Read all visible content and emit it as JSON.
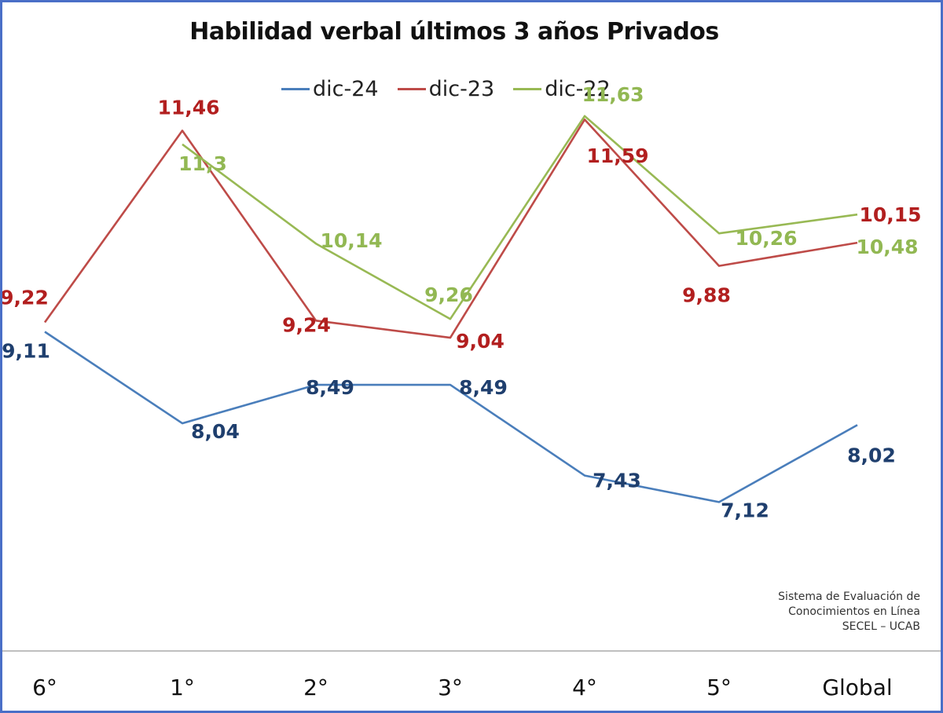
{
  "chart_data": {
    "type": "line",
    "title": "Habilidad verbal últimos 3 años Privados",
    "xlabel": "",
    "ylabel": "",
    "categories": [
      "6°",
      "1°",
      "2°",
      "3°",
      "4°",
      "5°",
      "Global"
    ],
    "ylim": [
      6.5,
      12.5
    ],
    "grid": false,
    "legend": "top",
    "series": [
      {
        "name": "dic-24",
        "color": "#4a7ebb",
        "label_color": "#1f3f6e",
        "values": [
          9.11,
          8.04,
          8.49,
          8.49,
          7.43,
          7.12,
          8.02
        ],
        "labels": [
          "9,11",
          "8,04",
          "8,49",
          "8,49",
          "7,43",
          "7,12",
          "8,02"
        ]
      },
      {
        "name": "dic-23",
        "color": "#be4b48",
        "label_color": "#b21f1f",
        "values": [
          9.22,
          11.46,
          9.24,
          9.04,
          11.59,
          9.88,
          10.15
        ],
        "labels": [
          "9,22",
          "11,46",
          "9,24",
          "9,04",
          "11,59",
          "9,88",
          "10,15"
        ]
      },
      {
        "name": "dic-22",
        "color": "#98b954",
        "label_color": "#92b853",
        "values": [
          null,
          11.3,
          10.14,
          9.26,
          11.63,
          10.26,
          10.48
        ],
        "labels": [
          "",
          "11,3",
          "10,14",
          "9,26",
          "11,63",
          "10,26",
          "10,48"
        ]
      }
    ]
  },
  "source_note": {
    "line1": "Sistema de Evaluación de",
    "line2": "Conocimientos en Línea",
    "line3": "SECEL – UCAB"
  }
}
